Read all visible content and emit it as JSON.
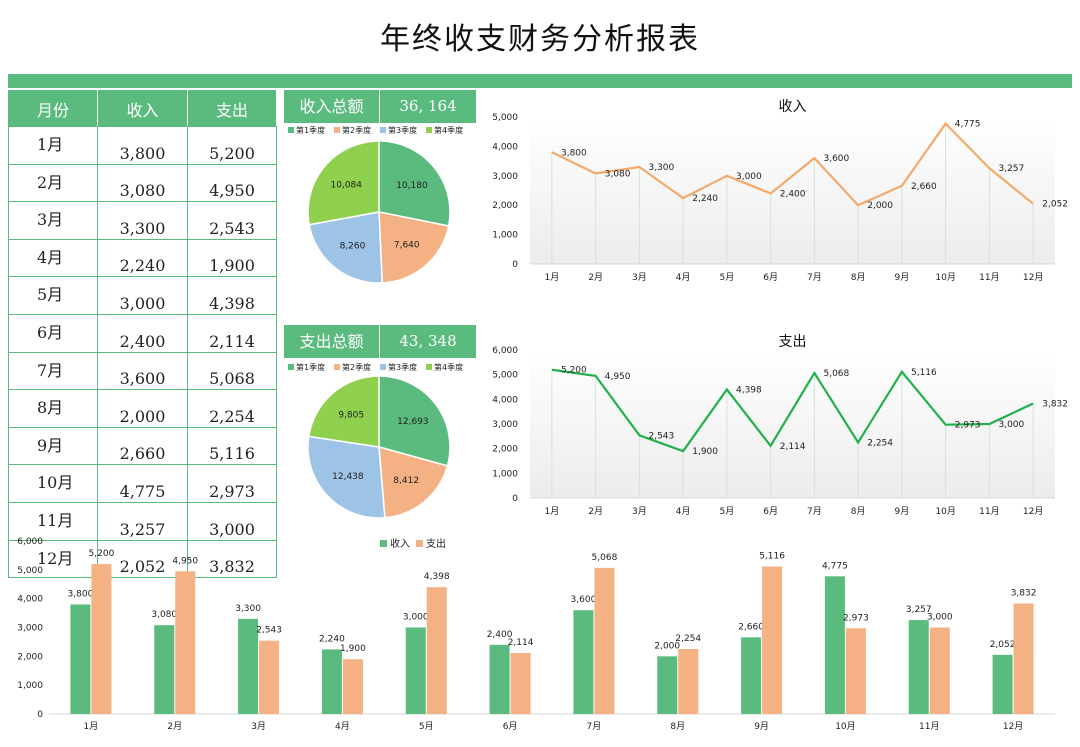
{
  "title": "年终收支财务分析报表",
  "table": {
    "headers": [
      "月份",
      "收入",
      "支出"
    ],
    "rows": [
      [
        "1月",
        "3,800",
        "5,200"
      ],
      [
        "2月",
        "3,080",
        "4,950"
      ],
      [
        "3月",
        "3,300",
        "2,543"
      ],
      [
        "4月",
        "2,240",
        "1,900"
      ],
      [
        "5月",
        "3,000",
        "4,398"
      ],
      [
        "6月",
        "2,400",
        "2,114"
      ],
      [
        "7月",
        "3,600",
        "5,068"
      ],
      [
        "8月",
        "2,000",
        "2,254"
      ],
      [
        "9月",
        "2,660",
        "5,116"
      ],
      [
        "10月",
        "4,775",
        "2,973"
      ],
      [
        "11月",
        "3,257",
        "3,000"
      ],
      [
        "12月",
        "2,052",
        "3,832"
      ]
    ]
  },
  "totals": {
    "income_label": "收入总额",
    "income_value": "36, 164",
    "expense_label": "支出总额",
    "expense_value": "43, 348"
  },
  "colors": {
    "green": "#5bbb7f",
    "orange": "#f4b183",
    "blue": "#9dc3e6",
    "lime": "#8fd14f",
    "income_line": "#f4a96a",
    "expense_line": "#21b14a"
  },
  "chart_data": [
    {
      "type": "pie",
      "legend": [
        "第1季度",
        "第2季度",
        "第3季度",
        "第4季度"
      ],
      "values": [
        10180,
        7640,
        8260,
        10084
      ],
      "labels": [
        "10,180",
        "7,640",
        "8,260",
        "10,084"
      ],
      "legend_position": "top"
    },
    {
      "type": "pie",
      "legend": [
        "第1季度",
        "第2季度",
        "第3季度",
        "第4季度"
      ],
      "values": [
        12693,
        8412,
        12438,
        9805
      ],
      "labels": [
        "12,693",
        "8,412",
        "12,438",
        "9,805"
      ],
      "legend_position": "top"
    },
    {
      "type": "line",
      "title": "收入",
      "categories": [
        "1月",
        "2月",
        "3月",
        "4月",
        "5月",
        "6月",
        "7月",
        "8月",
        "9月",
        "10月",
        "11月",
        "12月"
      ],
      "values": [
        3800,
        3080,
        3300,
        2240,
        3000,
        2400,
        3600,
        2000,
        2660,
        4775,
        3257,
        2052
      ],
      "labels": [
        "3,800",
        "3,080",
        "3,300",
        "2,240",
        "3,000",
        "2,400",
        "3,600",
        "2,000",
        "2,660",
        "4,775",
        "3,257",
        "2,052"
      ],
      "ylim": [
        0,
        5000
      ],
      "yticks": [
        "0",
        "1,000",
        "2,000",
        "3,000",
        "4,000",
        "5,000"
      ]
    },
    {
      "type": "line",
      "title": "支出",
      "categories": [
        "1月",
        "2月",
        "3月",
        "4月",
        "5月",
        "6月",
        "7月",
        "8月",
        "9月",
        "10月",
        "11月",
        "12月"
      ],
      "values": [
        5200,
        4950,
        2543,
        1900,
        4398,
        2114,
        5068,
        2254,
        5116,
        2973,
        3000,
        3832
      ],
      "labels": [
        "5,200",
        "4,950",
        "2,543",
        "1,900",
        "4,398",
        "2,114",
        "5,068",
        "2,254",
        "5,116",
        "2,973",
        "3,000",
        "3,832"
      ],
      "ylim": [
        0,
        6000
      ],
      "yticks": [
        "0",
        "1,000",
        "2,000",
        "3,000",
        "4,000",
        "5,000",
        "6,000"
      ]
    },
    {
      "type": "bar",
      "categories": [
        "1月",
        "2月",
        "3月",
        "4月",
        "5月",
        "6月",
        "7月",
        "8月",
        "9月",
        "10月",
        "11月",
        "12月"
      ],
      "series": [
        {
          "name": "收入",
          "values": [
            3800,
            3080,
            3300,
            2240,
            3000,
            2400,
            3600,
            2000,
            2660,
            4775,
            3257,
            2052
          ],
          "labels": [
            "3,800",
            "3,080",
            "3,300",
            "2,240",
            "3,000",
            "2,400",
            "3,600",
            "2,000",
            "2,660",
            "4,775",
            "3,257",
            "2,052"
          ]
        },
        {
          "name": "支出",
          "values": [
            5200,
            4950,
            2543,
            1900,
            4398,
            2114,
            5068,
            2254,
            5116,
            2973,
            3000,
            3832
          ],
          "labels": [
            "5,200",
            "4,950",
            "2,543",
            "1,900",
            "4,398",
            "2,114",
            "5,068",
            "2,254",
            "5,116",
            "2,973",
            "3,000",
            "3,832"
          ]
        }
      ],
      "ylim": [
        0,
        6000
      ],
      "yticks": [
        "0",
        "1,000",
        "2,000",
        "3,000",
        "4,000",
        "5,000",
        "6,000"
      ],
      "legend_position": "top-center"
    }
  ]
}
